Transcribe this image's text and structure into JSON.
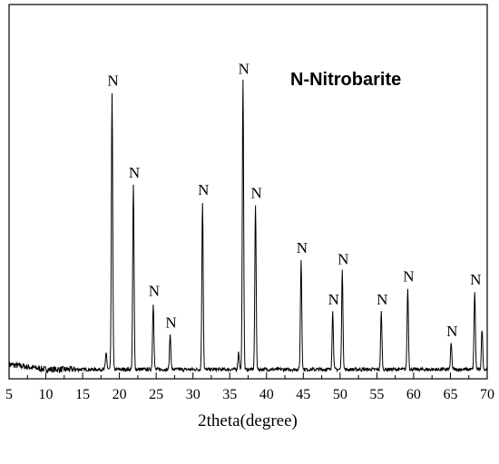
{
  "chart_data": {
    "type": "line",
    "title": "N-Nitrobarite",
    "xlabel": "2theta(degree)",
    "ylabel": "",
    "xlim": [
      5,
      70
    ],
    "ylim": [
      0,
      100
    ],
    "x_ticks": [
      "5",
      "10",
      "15",
      "20",
      "25",
      "30",
      "35",
      "40",
      "45",
      "50",
      "55",
      "60",
      "65",
      "70"
    ],
    "x_tick_values": [
      5,
      10,
      15,
      20,
      25,
      30,
      35,
      40,
      45,
      50,
      55,
      60,
      65,
      70
    ],
    "y_ticks_shown": false,
    "grid": false,
    "baseline": 2,
    "peaks": [
      {
        "x": 18.2,
        "y": 6,
        "label": ""
      },
      {
        "x": 19.0,
        "y": 96,
        "label": "N"
      },
      {
        "x": 21.9,
        "y": 64,
        "label": "N"
      },
      {
        "x": 24.6,
        "y": 23,
        "label": "N"
      },
      {
        "x": 26.9,
        "y": 12,
        "label": "N"
      },
      {
        "x": 31.3,
        "y": 58,
        "label": "N"
      },
      {
        "x": 36.2,
        "y": 6,
        "label": ""
      },
      {
        "x": 36.8,
        "y": 100,
        "label": "N"
      },
      {
        "x": 38.5,
        "y": 57,
        "label": "N"
      },
      {
        "x": 44.7,
        "y": 38,
        "label": "N"
      },
      {
        "x": 49.0,
        "y": 20,
        "label": "N"
      },
      {
        "x": 50.3,
        "y": 34,
        "label": "N"
      },
      {
        "x": 55.6,
        "y": 20,
        "label": "N"
      },
      {
        "x": 59.2,
        "y": 28,
        "label": "N"
      },
      {
        "x": 65.1,
        "y": 9,
        "label": "N"
      },
      {
        "x": 68.3,
        "y": 27,
        "label": "N"
      },
      {
        "x": 69.3,
        "y": 14,
        "label": ""
      }
    ]
  }
}
